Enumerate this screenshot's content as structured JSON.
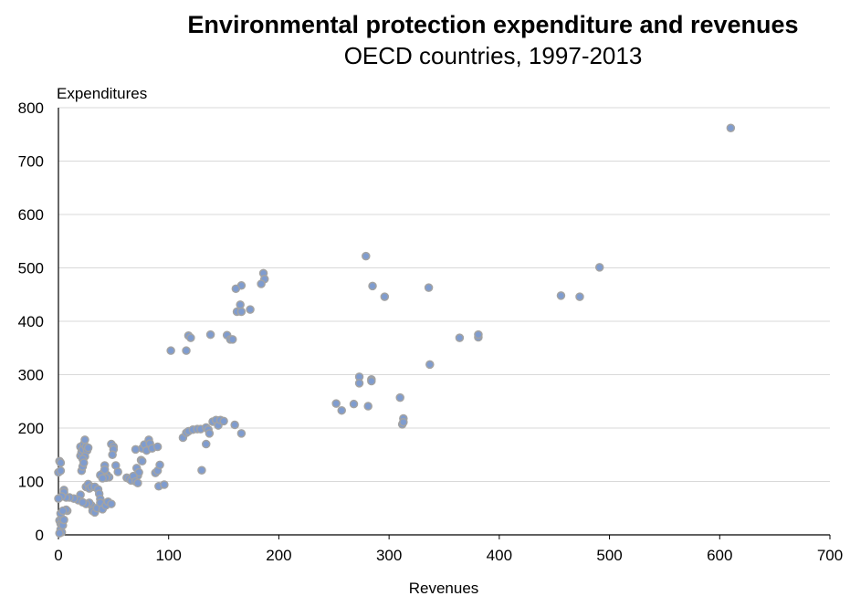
{
  "chart_data": {
    "type": "scatter",
    "title": "Environmental protection expenditure and revenues",
    "subtitle": "OECD countries, 1997-2013",
    "xlabel": "Revenues",
    "ylabel": "Expenditures",
    "xlim": [
      0,
      700
    ],
    "ylim": [
      0,
      800
    ],
    "x_ticks": [
      "0",
      "100",
      "200",
      "300",
      "400",
      "500",
      "600",
      "700"
    ],
    "y_ticks": [
      "0",
      "100",
      "200",
      "300",
      "400",
      "500",
      "600",
      "700",
      "800"
    ],
    "grid": true,
    "legend": "none",
    "colors": {
      "marker_fill": "#7f9ccf",
      "marker_stroke": "#a3a3a3",
      "grid": "#d9d9d9",
      "axis": "#000000"
    },
    "series": [
      {
        "points": [
          [
            610,
            762
          ],
          [
            491,
            501
          ],
          [
            456,
            448
          ],
          [
            473,
            446
          ],
          [
            336,
            463
          ],
          [
            337,
            319
          ],
          [
            364,
            369
          ],
          [
            381,
            370
          ],
          [
            381,
            375
          ],
          [
            279,
            522
          ],
          [
            285,
            466
          ],
          [
            296,
            446
          ],
          [
            273,
            296
          ],
          [
            273,
            284
          ],
          [
            284,
            291
          ],
          [
            284,
            288
          ],
          [
            310,
            257
          ],
          [
            312,
            207
          ],
          [
            313,
            218
          ],
          [
            313,
            211
          ],
          [
            252,
            246
          ],
          [
            257,
            233
          ],
          [
            268,
            245
          ],
          [
            281,
            241
          ],
          [
            186,
            490
          ],
          [
            187,
            479
          ],
          [
            184,
            470
          ],
          [
            166,
            467
          ],
          [
            161,
            461
          ],
          [
            165,
            431
          ],
          [
            162,
            418
          ],
          [
            166,
            418
          ],
          [
            174,
            422
          ],
          [
            118,
            373
          ],
          [
            120,
            369
          ],
          [
            138,
            375
          ],
          [
            153,
            374
          ],
          [
            156,
            366
          ],
          [
            158,
            366
          ],
          [
            102,
            345
          ],
          [
            116,
            345
          ],
          [
            113,
            182
          ],
          [
            116,
            191
          ],
          [
            118,
            194
          ],
          [
            122,
            197
          ],
          [
            126,
            198
          ],
          [
            129,
            198
          ],
          [
            134,
            201
          ],
          [
            136,
            197
          ],
          [
            137,
            190
          ],
          [
            140,
            212
          ],
          [
            143,
            215
          ],
          [
            145,
            205
          ],
          [
            147,
            215
          ],
          [
            150,
            213
          ],
          [
            160,
            206
          ],
          [
            166,
            190
          ],
          [
            130,
            121
          ],
          [
            134,
            170
          ],
          [
            76,
            162
          ],
          [
            78,
            169
          ],
          [
            80,
            158
          ],
          [
            82,
            178
          ],
          [
            83,
            171
          ],
          [
            85,
            162
          ],
          [
            90,
            165
          ],
          [
            70,
            160
          ],
          [
            71,
            125
          ],
          [
            72,
            111
          ],
          [
            73,
            117
          ],
          [
            75,
            140
          ],
          [
            76,
            138
          ],
          [
            88,
            116
          ],
          [
            90,
            120
          ],
          [
            92,
            131
          ],
          [
            91,
            91
          ],
          [
            96,
            94
          ],
          [
            62,
            107
          ],
          [
            64,
            105
          ],
          [
            66,
            102
          ],
          [
            68,
            110
          ],
          [
            70,
            100
          ],
          [
            72,
            97
          ],
          [
            48,
            170
          ],
          [
            50,
            165
          ],
          [
            50,
            160
          ],
          [
            49,
            150
          ],
          [
            46,
            108
          ],
          [
            44,
            112
          ],
          [
            52,
            130
          ],
          [
            54,
            118
          ],
          [
            41,
            117
          ],
          [
            42,
            130
          ],
          [
            42,
            122
          ],
          [
            43,
            107
          ],
          [
            38,
            112
          ],
          [
            40,
            106
          ],
          [
            20,
            148
          ],
          [
            20,
            165
          ],
          [
            21,
            155
          ],
          [
            22,
            160
          ],
          [
            23,
            170
          ],
          [
            24,
            178
          ],
          [
            25,
            165
          ],
          [
            26,
            158
          ],
          [
            27,
            163
          ],
          [
            24,
            147
          ],
          [
            22,
            142
          ],
          [
            21,
            120
          ],
          [
            22,
            128
          ],
          [
            23,
            135
          ],
          [
            25,
            90
          ],
          [
            27,
            95
          ],
          [
            28,
            87
          ],
          [
            30,
            90
          ],
          [
            33,
            90
          ],
          [
            36,
            85
          ],
          [
            37,
            77
          ],
          [
            38,
            67
          ],
          [
            20,
            75
          ],
          [
            18,
            65
          ],
          [
            14,
            68
          ],
          [
            10,
            70
          ],
          [
            7,
            70
          ],
          [
            5,
            84
          ],
          [
            5,
            80
          ],
          [
            3,
            72
          ],
          [
            8,
            45
          ],
          [
            7,
            47
          ],
          [
            30,
            55
          ],
          [
            31,
            45
          ],
          [
            33,
            42
          ],
          [
            35,
            50
          ],
          [
            38,
            60
          ],
          [
            40,
            48
          ],
          [
            43,
            55
          ],
          [
            45,
            62
          ],
          [
            48,
            58
          ],
          [
            28,
            60
          ],
          [
            25,
            58
          ],
          [
            22,
            61
          ],
          [
            0,
            68
          ],
          [
            1,
            138
          ],
          [
            2,
            135
          ],
          [
            0,
            117
          ],
          [
            2,
            120
          ],
          [
            1,
            27
          ],
          [
            2,
            10
          ],
          [
            3,
            5
          ],
          [
            1,
            3
          ],
          [
            2,
            21
          ],
          [
            3,
            24
          ],
          [
            3,
            30
          ],
          [
            4,
            18
          ],
          [
            5,
            28
          ],
          [
            2,
            40
          ],
          [
            4,
            45
          ]
        ]
      }
    ]
  }
}
